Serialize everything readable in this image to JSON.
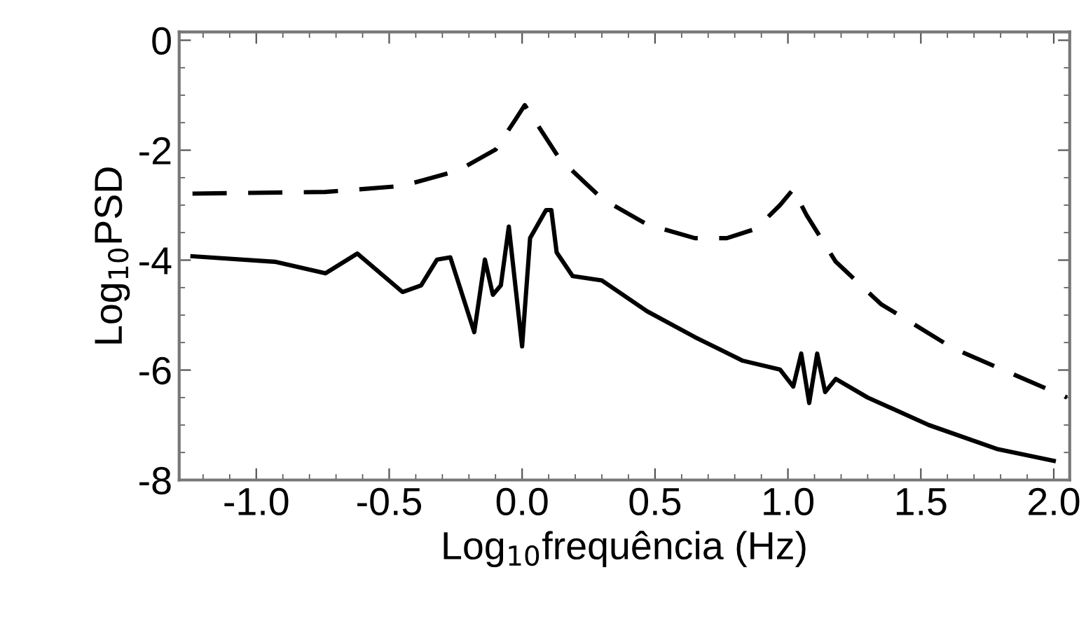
{
  "chart_data": {
    "type": "line",
    "xlabel": "Log$_{10}$frequência (Hz)",
    "ylabel": "Log$_{10}$PSD",
    "xlim": [
      -1.29,
      2.06
    ],
    "ylim": [
      -8,
      0.15
    ],
    "xticks": [
      {
        "value": -1.0,
        "label": "-1.0"
      },
      {
        "value": -0.5,
        "label": "-0.5"
      },
      {
        "value": 0.0,
        "label": "0.0"
      },
      {
        "value": 0.5,
        "label": "0.5"
      },
      {
        "value": 1.0,
        "label": "1.0"
      },
      {
        "value": 1.5,
        "label": "1.5"
      },
      {
        "value": 2.0,
        "label": "2.0"
      }
    ],
    "yticks": [
      {
        "value": 0,
        "label": "0"
      },
      {
        "value": -2,
        "label": "-2"
      },
      {
        "value": -4,
        "label": "-4"
      },
      {
        "value": -6,
        "label": "-6"
      },
      {
        "value": -8,
        "label": "-8"
      }
    ],
    "grid": false,
    "legend": false,
    "series": [
      {
        "color": "#000000",
        "line_style": "dashed",
        "x": [
          -1.24,
          -0.74,
          -0.45,
          -0.24,
          -0.1,
          -0.03,
          0.01,
          0.05,
          0.14,
          0.3,
          0.47,
          0.65,
          0.77,
          0.88,
          0.97,
          1.02,
          1.07,
          1.18,
          1.35,
          1.62,
          2.05
        ],
        "values": [
          -2.79,
          -2.76,
          -2.65,
          -2.37,
          -1.99,
          -1.48,
          -1.18,
          -1.48,
          -2.15,
          -2.88,
          -3.35,
          -3.6,
          -3.6,
          -3.43,
          -3.0,
          -2.71,
          -3.18,
          -4.03,
          -4.8,
          -5.6,
          -6.5
        ]
      },
      {
        "color": "#000000",
        "line_style": "solid",
        "x": [
          -1.24,
          -0.93,
          -0.74,
          -0.62,
          -0.45,
          -0.38,
          -0.32,
          -0.27,
          -0.18,
          -0.14,
          -0.11,
          -0.08,
          -0.05,
          0.0,
          0.03,
          0.09,
          0.11,
          0.13,
          0.19,
          0.3,
          0.47,
          0.65,
          0.83,
          0.97,
          1.02,
          1.05,
          1.08,
          1.11,
          1.14,
          1.18,
          1.3,
          1.53,
          1.79,
          2.0
        ],
        "values": [
          -3.93,
          -4.03,
          -4.24,
          -3.88,
          -4.58,
          -4.46,
          -3.99,
          -3.95,
          -5.31,
          -3.99,
          -4.63,
          -4.46,
          -3.39,
          -5.57,
          -3.6,
          -3.09,
          -3.09,
          -3.86,
          -4.29,
          -4.37,
          -4.93,
          -5.4,
          -5.83,
          -5.99,
          -6.3,
          -5.7,
          -6.6,
          -5.7,
          -6.4,
          -6.16,
          -6.5,
          -7.0,
          -7.44,
          -7.65
        ]
      }
    ]
  }
}
